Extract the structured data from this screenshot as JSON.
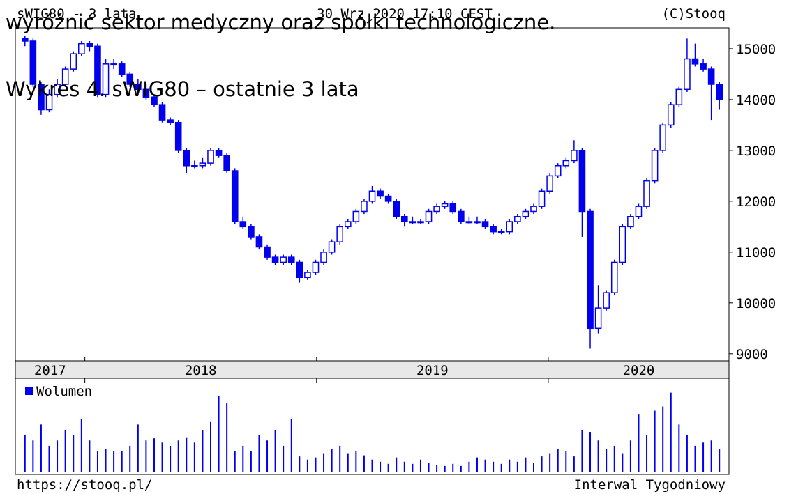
{
  "chart_data": {
    "type": "candlestick",
    "header": {
      "left": "sWIG80 - 3 lata",
      "center": "30 Wrz 2020 17:10 CEST",
      "right": "(C)Stooq"
    },
    "overlay": {
      "line1": "wyróżnić sektor medyczny oraz spółki technologiczne.",
      "line2": "Wykres 4. sWIG80 – ostatnie 3 lata"
    },
    "footer": {
      "left": "https://stooq.pl/",
      "right": "Interwal Tygodniowy"
    },
    "color": "#0000ee",
    "ylim": [
      8860,
      15410
    ],
    "yticks": [
      9000,
      10000,
      11000,
      12000,
      13000,
      14000,
      15000
    ],
    "xlim": [
      2017.7,
      2020.78
    ],
    "xticks": [
      2018,
      2019,
      2020
    ],
    "year_labels": [
      "2017",
      "2018",
      "2019",
      "2020"
    ],
    "candles": [
      [
        15200,
        15250,
        15050,
        15150
      ],
      [
        15150,
        15200,
        14250,
        14300
      ],
      [
        14300,
        14350,
        13700,
        13800
      ],
      [
        13800,
        14200,
        13750,
        14100
      ],
      [
        14100,
        14400,
        14050,
        14300
      ],
      [
        14300,
        14650,
        14250,
        14600
      ],
      [
        14600,
        14950,
        14550,
        14900
      ],
      [
        14900,
        15150,
        14850,
        15100
      ],
      [
        15100,
        15150,
        14950,
        15050
      ],
      [
        15050,
        15100,
        14050,
        14100
      ],
      [
        14100,
        14800,
        14050,
        14700
      ],
      [
        14700,
        14800,
        14600,
        14700
      ],
      [
        14700,
        14750,
        14450,
        14500
      ],
      [
        14500,
        14550,
        14250,
        14300
      ],
      [
        14300,
        14400,
        14150,
        14200
      ],
      [
        14200,
        14300,
        14000,
        14050
      ],
      [
        14050,
        14100,
        13850,
        13900
      ],
      [
        13900,
        13950,
        13550,
        13600
      ],
      [
        13600,
        13650,
        13500,
        13550
      ],
      [
        13550,
        13600,
        12950,
        13000
      ],
      [
        13000,
        13050,
        12550,
        12700
      ],
      [
        12700,
        12800,
        12650,
        12700
      ],
      [
        12700,
        12850,
        12650,
        12750
      ],
      [
        12750,
        13050,
        12700,
        13000
      ],
      [
        13000,
        13050,
        12850,
        12900
      ],
      [
        12900,
        12950,
        12550,
        12600
      ],
      [
        12600,
        12650,
        11550,
        11600
      ],
      [
        11600,
        11700,
        11450,
        11500
      ],
      [
        11500,
        11550,
        11250,
        11300
      ],
      [
        11300,
        11350,
        11050,
        11100
      ],
      [
        11100,
        11150,
        10850,
        10900
      ],
      [
        10900,
        10950,
        10750,
        10800
      ],
      [
        10800,
        10950,
        10750,
        10900
      ],
      [
        10900,
        10950,
        10750,
        10800
      ],
      [
        10800,
        10850,
        10400,
        10500
      ],
      [
        10500,
        10650,
        10450,
        10600
      ],
      [
        10600,
        10850,
        10550,
        10800
      ],
      [
        10800,
        11050,
        10750,
        11000
      ],
      [
        11000,
        11250,
        10950,
        11200
      ],
      [
        11200,
        11550,
        11150,
        11500
      ],
      [
        11500,
        11650,
        11450,
        11600
      ],
      [
        11600,
        11850,
        11550,
        11800
      ],
      [
        11800,
        12050,
        11750,
        12000
      ],
      [
        12000,
        12300,
        11950,
        12200
      ],
      [
        12200,
        12250,
        12050,
        12100
      ],
      [
        12100,
        12150,
        11950,
        12000
      ],
      [
        12000,
        12050,
        11650,
        11700
      ],
      [
        11700,
        11750,
        11500,
        11600
      ],
      [
        11600,
        11700,
        11550,
        11600
      ],
      [
        11600,
        11650,
        11550,
        11600
      ],
      [
        11600,
        11850,
        11550,
        11800
      ],
      [
        11800,
        11950,
        11750,
        11900
      ],
      [
        11900,
        12000,
        11850,
        11950
      ],
      [
        11950,
        12000,
        11750,
        11800
      ],
      [
        11800,
        11850,
        11550,
        11600
      ],
      [
        11600,
        11700,
        11550,
        11600
      ],
      [
        11600,
        11700,
        11550,
        11600
      ],
      [
        11600,
        11650,
        11450,
        11500
      ],
      [
        11500,
        11550,
        11350,
        11400
      ],
      [
        11400,
        11450,
        11350,
        11400
      ],
      [
        11400,
        11650,
        11350,
        11600
      ],
      [
        11600,
        11750,
        11550,
        11700
      ],
      [
        11700,
        11850,
        11650,
        11800
      ],
      [
        11800,
        11950,
        11750,
        11900
      ],
      [
        11900,
        12250,
        11850,
        12200
      ],
      [
        12200,
        12550,
        12150,
        12500
      ],
      [
        12500,
        12750,
        12450,
        12700
      ],
      [
        12700,
        12850,
        12650,
        12800
      ],
      [
        12800,
        13200,
        12750,
        13000
      ],
      [
        13000,
        13050,
        11300,
        11800
      ],
      [
        11800,
        11850,
        9100,
        9500
      ],
      [
        9500,
        10350,
        9400,
        9900
      ],
      [
        9900,
        10250,
        9850,
        10200
      ],
      [
        10200,
        10850,
        10150,
        10800
      ],
      [
        10800,
        11550,
        10750,
        11500
      ],
      [
        11500,
        11750,
        11450,
        11700
      ],
      [
        11700,
        11950,
        11650,
        11900
      ],
      [
        11900,
        12450,
        11850,
        12400
      ],
      [
        12400,
        13050,
        12350,
        13000
      ],
      [
        13000,
        13550,
        12950,
        13500
      ],
      [
        13500,
        13950,
        13450,
        13900
      ],
      [
        13900,
        14250,
        13850,
        14200
      ],
      [
        14200,
        15200,
        14150,
        14800
      ],
      [
        14800,
        15100,
        14650,
        14700
      ],
      [
        14700,
        14800,
        14550,
        14600
      ],
      [
        14600,
        14650,
        13600,
        14300
      ],
      [
        14300,
        14350,
        13800,
        14000
      ]
    ],
    "volume": {
      "name": "Wolumen",
      "ylim": [
        0,
        80
      ],
      "values": [
        35,
        30,
        45,
        25,
        30,
        40,
        35,
        50,
        30,
        20,
        22,
        20,
        20,
        25,
        45,
        30,
        32,
        28,
        25,
        30,
        33,
        28,
        40,
        48,
        72,
        65,
        20,
        25,
        20,
        35,
        30,
        40,
        25,
        50,
        15,
        12,
        14,
        18,
        22,
        25,
        18,
        20,
        16,
        12,
        10,
        8,
        14,
        10,
        8,
        12,
        9,
        7,
        6,
        8,
        6,
        10,
        14,
        12,
        10,
        8,
        12,
        10,
        14,
        9,
        15,
        18,
        22,
        20,
        15,
        40,
        38,
        30,
        22,
        25,
        18,
        30,
        55,
        35,
        58,
        62,
        75,
        45,
        35,
        25,
        28,
        30,
        22
      ]
    }
  }
}
